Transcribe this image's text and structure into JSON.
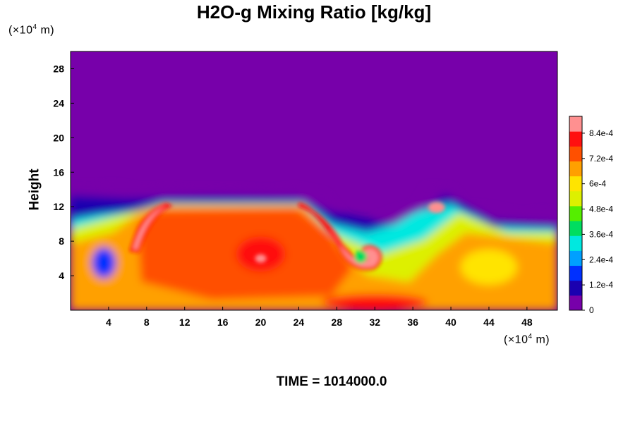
{
  "title": "H2O-g Mixing Ratio [kg/kg]",
  "footer": {
    "time_label": "TIME = 1014000.0"
  },
  "chart_data": {
    "type": "heatmap",
    "title": "H2O-g Mixing Ratio [kg/kg]",
    "xlabel": "",
    "ylabel": "Height",
    "x_unit": {
      "prefix": "(×10",
      "exp": "4",
      "suffix": " m)"
    },
    "y_unit": {
      "prefix": "(×10",
      "exp": "4",
      "suffix": " m)"
    },
    "xlim": [
      0,
      51.2
    ],
    "ylim": [
      0,
      30
    ],
    "x_ticks": [
      4,
      8,
      12,
      16,
      20,
      24,
      28,
      32,
      36,
      40,
      44,
      48
    ],
    "y_ticks": [
      4,
      8,
      12,
      16,
      20,
      24,
      28
    ],
    "colorbar": {
      "min": 0,
      "max": 0.00092,
      "tick_values": [
        0,
        0.00012,
        0.00024,
        0.00036,
        0.00048,
        0.0006,
        0.00072,
        0.00084
      ],
      "tick_labels": [
        "0",
        "1.2e-4",
        "2.4e-4",
        "3.6e-4",
        "4.8e-4",
        "6e-4",
        "7.2e-4",
        "8.4e-4"
      ],
      "colors": [
        "#7700aa",
        "#1a00b0",
        "#0030ff",
        "#00a0ff",
        "#00e8e0",
        "#00dd60",
        "#55ee00",
        "#ddf000",
        "#ffe400",
        "#ffa000",
        "#ff5000",
        "#ff1010",
        "#ff9090"
      ]
    },
    "top_of_moist_layer_height": 14,
    "features": [
      {
        "name": "moist-column-left",
        "x": 6.5,
        "height_top": 12.5,
        "value": 0.00088
      },
      {
        "name": "moist-column-right",
        "x": 27,
        "height_top": 12.5,
        "value": 0.00088
      },
      {
        "name": "vortex-center",
        "x": 30.5,
        "height": 6.5,
        "value": 0.00088
      },
      {
        "name": "dry-pocket",
        "x": 3.5,
        "height": 5.5,
        "value": 0.00015
      },
      {
        "name": "moist-spot",
        "x": 38.5,
        "height": 12,
        "value": 0.00088
      },
      {
        "name": "warm-core",
        "x": 20,
        "height": 6,
        "value": 0.00084
      },
      {
        "name": "surface-moist-band",
        "x": 32,
        "height": 1,
        "value": 0.0008
      }
    ]
  }
}
